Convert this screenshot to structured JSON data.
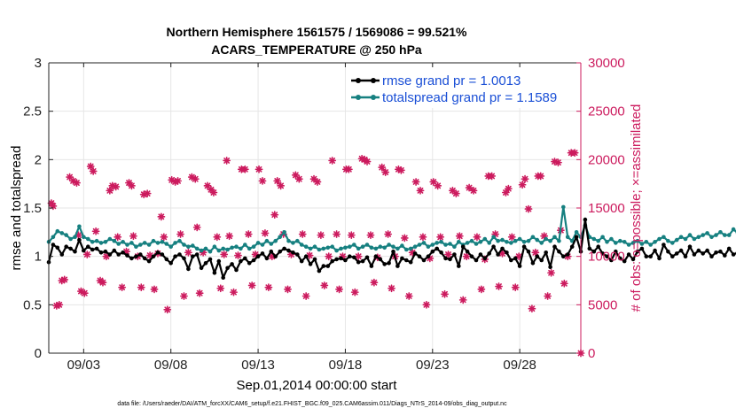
{
  "chart_data": {
    "type": "line",
    "title": "Northern Hemisphere 1561575 / 1569086 = 99.521%",
    "subtitle": "ACARS_TEMPERATURE @ 250 hPa",
    "xlabel": "Sep.01,2014 00:00:00 start",
    "ylabel_left": "rmse and totalspread",
    "ylabel_right": "# of obs: o=possible; ×=assimilated",
    "x_tick_labels": [
      "09/03",
      "09/08",
      "09/13",
      "09/18",
      "09/23",
      "09/28"
    ],
    "x_tick_positions_days": [
      3,
      8,
      13,
      18,
      23,
      28
    ],
    "xlim_days": [
      1,
      31.5
    ],
    "ylim_left": [
      0,
      3
    ],
    "ylim_right": [
      0,
      30000
    ],
    "y_ticks_left": [
      "0",
      "0.5",
      "1",
      "1.5",
      "2",
      "2.5",
      "3"
    ],
    "y_ticks_right": [
      "0",
      "5000",
      "10000",
      "15000",
      "20000",
      "25000",
      "30000"
    ],
    "grid": true,
    "legend_position": "top-right",
    "colors": {
      "rmse": "#000000",
      "totalspread": "#168080",
      "obs": "#cc1b5e",
      "right_axis": "#cc1b5e",
      "legend_text": "#1a4fd6"
    },
    "series": [
      {
        "name": "rmse grand pr = 1.0013",
        "axis": "left",
        "step_days": 0.25,
        "x_start_day": 1,
        "values": [
          0.94,
          1.12,
          1.09,
          1.02,
          1.1,
          1.08,
          1.05,
          1.17,
          1.06,
          1.1,
          1.07,
          1.08,
          1.04,
          1.05,
          1.02,
          1.06,
          1.02,
          1.04,
          1.01,
          0.98,
          1.0,
          1.02,
          0.98,
          0.95,
          1.0,
          1.04,
          1.02,
          0.97,
          0.93,
          1.0,
          1.02,
          0.98,
          0.87,
          1.0,
          1.02,
          0.88,
          0.93,
          0.97,
          0.83,
          0.95,
          0.78,
          0.88,
          0.92,
          0.86,
          0.95,
          0.98,
          0.93,
          0.96,
          1.0,
          1.03,
          0.98,
          1.05,
          1.0,
          1.05,
          1.08,
          1.06,
          1.04,
          1.02,
          0.95,
          1.0,
          0.92,
          0.97,
          0.85,
          0.9,
          0.9,
          0.95,
          0.97,
          0.98,
          0.96,
          1.0,
          0.99,
          0.94,
          0.95,
          0.99,
          0.9,
          1.0,
          0.97,
          0.92,
          0.93,
          1.05,
          0.9,
          0.98,
          0.96,
          0.94,
          1.03,
          1.0,
          0.96,
          1.0,
          1.05,
          1.08,
          1.04,
          0.98,
          0.97,
          1.02,
          0.9,
          1.1,
          1.05,
          1.0,
          0.96,
          1.02,
          0.98,
          1.03,
          1.1,
          1.02,
          1.08,
          1.04,
          0.96,
          0.98,
          0.9,
          1.1,
          1.05,
          0.93,
          1.0,
          0.96,
          1.04,
          0.89,
          1.1,
          1.05,
          1.0,
          1.02,
          1.1,
          1.2,
          1.05,
          1.38,
          1.08,
          1.05,
          1.1,
          1.03,
          1.0,
          0.96,
          1.05,
          0.98,
          0.95,
          1.02,
          0.97,
          1.05,
          1.08,
          1.0,
          1.0,
          1.06,
          0.98,
          1.12,
          1.05,
          1.0,
          1.03,
          1.06,
          1.0,
          1.1,
          1.02,
          1.06,
          1.03,
          1.06,
          1.0,
          1.04,
          1.05,
          1.01,
          1.08,
          1.02,
          1.04,
          1.06,
          1.1,
          1.05,
          0.98,
          1.08,
          1.02,
          1.0,
          1.06,
          1.08,
          1.05,
          0.93,
          1.05,
          1.03,
          1.06,
          1.1,
          1.12,
          1.06,
          1.3,
          1.12,
          1.1
        ]
      },
      {
        "name": "totalspread grand pr = 1.1589",
        "axis": "left",
        "step_days": 0.25,
        "x_start_day": 1,
        "values": [
          1.15,
          1.2,
          1.26,
          1.24,
          1.22,
          1.18,
          1.2,
          1.31,
          1.2,
          1.18,
          1.15,
          1.16,
          1.14,
          1.15,
          1.18,
          1.16,
          1.13,
          1.15,
          1.12,
          1.14,
          1.1,
          1.12,
          1.14,
          1.12,
          1.16,
          1.14,
          1.15,
          1.13,
          1.1,
          1.14,
          1.16,
          1.12,
          1.1,
          1.11,
          1.08,
          1.06,
          1.08,
          1.05,
          1.1,
          1.06,
          1.08,
          1.07,
          1.09,
          1.1,
          1.08,
          1.12,
          1.08,
          1.1,
          1.14,
          1.12,
          1.16,
          1.13,
          1.16,
          1.2,
          1.25,
          1.16,
          1.14,
          1.16,
          1.12,
          1.1,
          1.08,
          1.1,
          1.07,
          1.08,
          1.09,
          1.1,
          1.06,
          1.08,
          1.09,
          1.1,
          1.12,
          1.08,
          1.1,
          1.12,
          1.09,
          1.08,
          1.1,
          1.09,
          1.12,
          1.1,
          1.08,
          1.11,
          1.07,
          1.08,
          1.1,
          1.12,
          1.14,
          1.1,
          1.12,
          1.14,
          1.15,
          1.12,
          1.13,
          1.1,
          1.15,
          1.12,
          1.14,
          1.16,
          1.13,
          1.15,
          1.18,
          1.14,
          1.2,
          1.16,
          1.17,
          1.15,
          1.14,
          1.16,
          1.18,
          1.15,
          1.16,
          1.2,
          1.17,
          1.14,
          1.18,
          1.16,
          1.2,
          1.16,
          1.51,
          1.2,
          1.16,
          1.25,
          1.2,
          1.32,
          1.2,
          1.18,
          1.16,
          1.2,
          1.15,
          1.18,
          1.14,
          1.16,
          1.15,
          1.12,
          1.14,
          1.16,
          1.13,
          1.15,
          1.12,
          1.15,
          1.18,
          1.2,
          1.16,
          1.14,
          1.17,
          1.2,
          1.18,
          1.22,
          1.18,
          1.2,
          1.22,
          1.24,
          1.2,
          1.22,
          1.25,
          1.22,
          1.22,
          1.28,
          1.24,
          1.25,
          1.2,
          1.22,
          1.24,
          1.26,
          1.22,
          1.25,
          1.27,
          1.24,
          1.23,
          1.25,
          1.14,
          1.2,
          1.17,
          1.25,
          1.22,
          1.2,
          1.3,
          1.28,
          1.28
        ]
      },
      {
        "name": "obs count",
        "axis": "right",
        "markers": [
          [
            1.15,
            15500
          ],
          [
            1.25,
            15200
          ],
          [
            1.45,
            4900
          ],
          [
            1.6,
            5000
          ],
          [
            1.75,
            7500
          ],
          [
            1.9,
            7600
          ],
          [
            2.2,
            18200
          ],
          [
            2.4,
            17800
          ],
          [
            2.6,
            17600
          ],
          [
            2.7,
            12200
          ],
          [
            2.85,
            6400
          ],
          [
            3.05,
            6200
          ],
          [
            3.2,
            10200
          ],
          [
            3.4,
            19300
          ],
          [
            3.55,
            18800
          ],
          [
            3.7,
            12600
          ],
          [
            3.95,
            7500
          ],
          [
            4.1,
            7300
          ],
          [
            4.3,
            10000
          ],
          [
            4.5,
            16800
          ],
          [
            4.65,
            17300
          ],
          [
            4.85,
            17200
          ],
          [
            4.95,
            12000
          ],
          [
            5.2,
            6800
          ],
          [
            5.45,
            10500
          ],
          [
            5.6,
            17600
          ],
          [
            5.75,
            17300
          ],
          [
            5.85,
            12100
          ],
          [
            6.1,
            10000
          ],
          [
            6.3,
            6800
          ],
          [
            6.45,
            16400
          ],
          [
            6.65,
            16500
          ],
          [
            6.8,
            10100
          ],
          [
            7.05,
            6600
          ],
          [
            7.25,
            10300
          ],
          [
            7.45,
            14100
          ],
          [
            7.6,
            12000
          ],
          [
            7.8,
            4500
          ],
          [
            8.05,
            17900
          ],
          [
            8.25,
            17700
          ],
          [
            8.4,
            17800
          ],
          [
            8.55,
            12300
          ],
          [
            8.75,
            5900
          ],
          [
            9.0,
            10400
          ],
          [
            9.2,
            18200
          ],
          [
            9.4,
            18000
          ],
          [
            9.5,
            13000
          ],
          [
            9.65,
            6200
          ],
          [
            9.85,
            10400
          ],
          [
            10.1,
            17300
          ],
          [
            10.3,
            16900
          ],
          [
            10.45,
            16600
          ],
          [
            10.65,
            12000
          ],
          [
            10.85,
            6700
          ],
          [
            11.05,
            10200
          ],
          [
            11.2,
            19900
          ],
          [
            11.35,
            12100
          ],
          [
            11.6,
            6300
          ],
          [
            11.85,
            10100
          ],
          [
            12.05,
            19000
          ],
          [
            12.25,
            19000
          ],
          [
            12.45,
            12300
          ],
          [
            12.65,
            7000
          ],
          [
            12.85,
            10200
          ],
          [
            13.05,
            19000
          ],
          [
            13.25,
            17800
          ],
          [
            13.4,
            12400
          ],
          [
            13.6,
            6800
          ],
          [
            13.8,
            10000
          ],
          [
            13.95,
            14300
          ],
          [
            14.1,
            17800
          ],
          [
            14.3,
            17300
          ],
          [
            14.45,
            12300
          ],
          [
            14.7,
            6600
          ],
          [
            14.9,
            10200
          ],
          [
            15.15,
            18400
          ],
          [
            15.35,
            18000
          ],
          [
            15.55,
            12300
          ],
          [
            15.75,
            5900
          ],
          [
            15.95,
            10100
          ],
          [
            16.2,
            18000
          ],
          [
            16.4,
            17700
          ],
          [
            16.6,
            12200
          ],
          [
            16.8,
            7000
          ],
          [
            17.05,
            10000
          ],
          [
            17.25,
            19900
          ],
          [
            17.5,
            12300
          ],
          [
            17.65,
            6600
          ],
          [
            17.85,
            10000
          ],
          [
            18.05,
            19000
          ],
          [
            18.2,
            19000
          ],
          [
            18.35,
            12200
          ],
          [
            18.55,
            6300
          ],
          [
            18.75,
            10000
          ],
          [
            18.95,
            20100
          ],
          [
            19.1,
            20000
          ],
          [
            19.25,
            19800
          ],
          [
            19.45,
            12200
          ],
          [
            19.65,
            7300
          ],
          [
            19.85,
            9900
          ],
          [
            20.1,
            19200
          ],
          [
            20.3,
            18700
          ],
          [
            20.45,
            12300
          ],
          [
            20.65,
            6700
          ],
          [
            20.85,
            10000
          ],
          [
            21.05,
            19000
          ],
          [
            21.2,
            18900
          ],
          [
            21.4,
            11900
          ],
          [
            21.65,
            5900
          ],
          [
            21.85,
            10400
          ],
          [
            22.05,
            17700
          ],
          [
            22.3,
            16800
          ],
          [
            22.45,
            12000
          ],
          [
            22.65,
            5000
          ],
          [
            22.85,
            9800
          ],
          [
            23.05,
            17700
          ],
          [
            23.3,
            17300
          ],
          [
            23.45,
            12000
          ],
          [
            23.7,
            6100
          ],
          [
            23.9,
            10200
          ],
          [
            24.15,
            16800
          ],
          [
            24.35,
            16500
          ],
          [
            24.55,
            12100
          ],
          [
            24.75,
            5500
          ],
          [
            24.95,
            10000
          ],
          [
            25.1,
            17100
          ],
          [
            25.35,
            16800
          ],
          [
            25.55,
            12000
          ],
          [
            25.8,
            6600
          ],
          [
            26.0,
            9700
          ],
          [
            26.2,
            18300
          ],
          [
            26.4,
            18300
          ],
          [
            26.6,
            12300
          ],
          [
            26.8,
            6900
          ],
          [
            27.0,
            10300
          ],
          [
            27.2,
            16600
          ],
          [
            27.35,
            17000
          ],
          [
            27.55,
            12000
          ],
          [
            27.75,
            6800
          ],
          [
            27.95,
            10000
          ],
          [
            28.15,
            17400
          ],
          [
            28.3,
            18000
          ],
          [
            28.5,
            14900
          ],
          [
            28.7,
            4600
          ],
          [
            28.9,
            10400
          ],
          [
            29.05,
            18300
          ],
          [
            29.2,
            18300
          ],
          [
            29.4,
            12100
          ],
          [
            29.6,
            5900
          ],
          [
            29.8,
            8300
          ],
          [
            30.0,
            19800
          ],
          [
            30.2,
            19700
          ],
          [
            30.35,
            12700
          ],
          [
            30.55,
            7200
          ],
          [
            30.75,
            10000
          ],
          [
            30.95,
            20700
          ],
          [
            31.15,
            20700
          ],
          [
            31.5,
            0
          ]
        ]
      }
    ],
    "footnote": "data file: /Users/raeder/DAI/ATM_forcXX/CAM6_setup/f.e21.FHIST_BGC.f09_025.CAM6assim.011/Diags_NTrS_2014-09/obs_diag_output.nc"
  }
}
